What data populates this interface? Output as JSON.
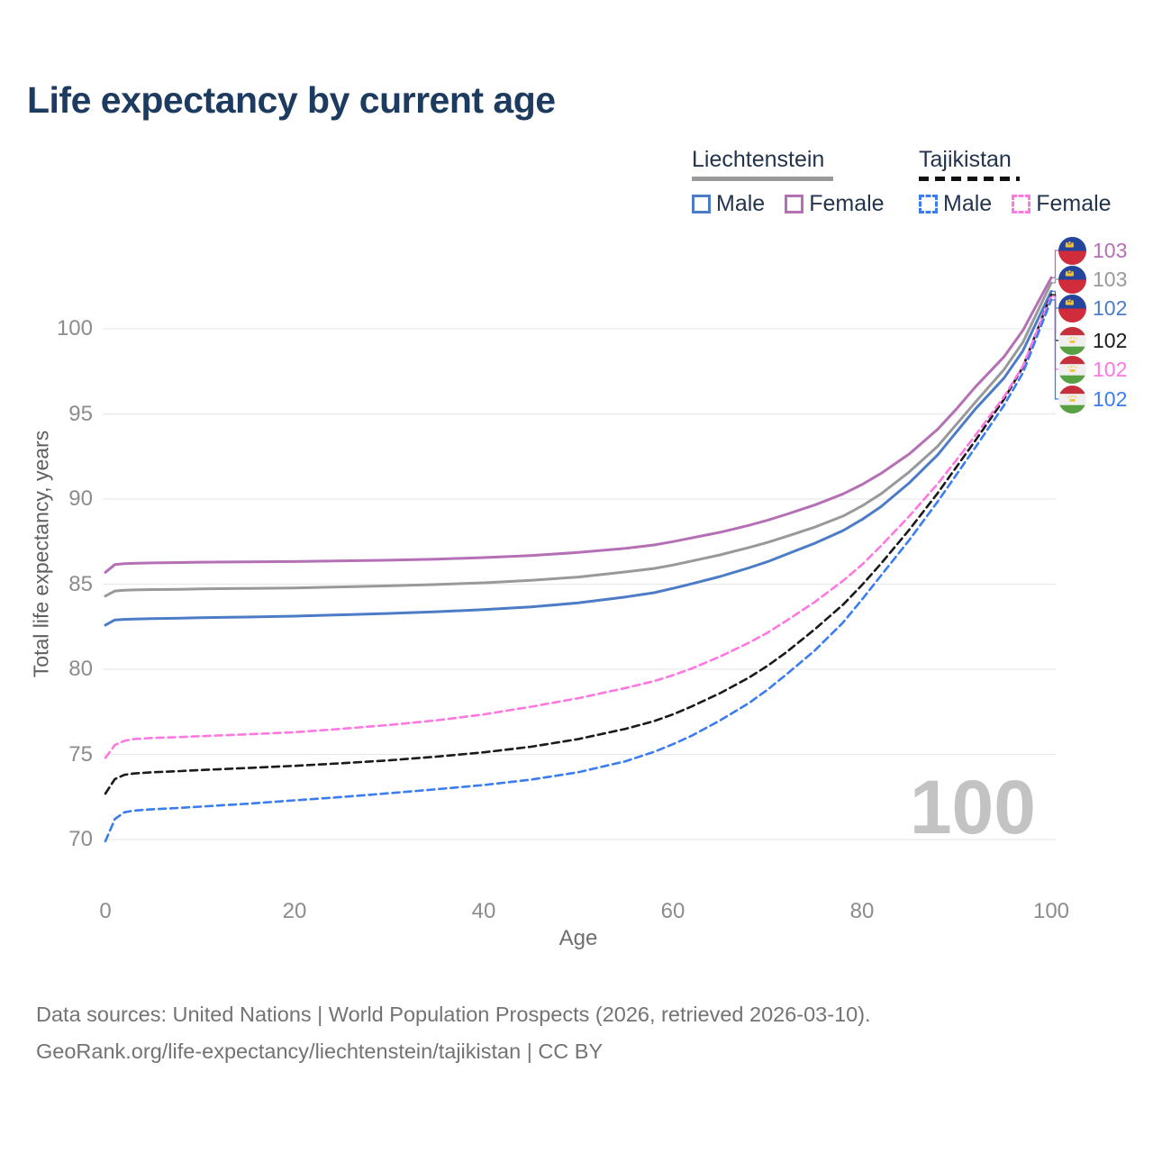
{
  "title": "Life expectancy by current age",
  "legend": {
    "groups": [
      {
        "id": "liechtenstein",
        "label": "Liechtenstein",
        "line_style": "solid",
        "line_color": "#9a9a9a",
        "items": [
          {
            "id": "male",
            "label": "Male",
            "color": "#4d7cc7",
            "dashed": false
          },
          {
            "id": "female",
            "label": "Female",
            "color": "#b570b5",
            "dashed": false
          }
        ]
      },
      {
        "id": "tajikistan",
        "label": "Tajikistan",
        "line_style": "dashed",
        "line_color": "#111111",
        "items": [
          {
            "id": "male",
            "label": "Male",
            "color": "#3b7df0",
            "dashed": true
          },
          {
            "id": "female",
            "label": "Female",
            "color": "#ff77e0",
            "dashed": true
          }
        ]
      }
    ]
  },
  "chart_data": {
    "type": "line",
    "title": "Life expectancy by current age",
    "xlabel": "Age",
    "ylabel": "Total life expectancy, years",
    "x_ticks": [
      0,
      20,
      40,
      60,
      80,
      100
    ],
    "y_ticks": [
      70,
      75,
      80,
      85,
      90,
      95,
      100
    ],
    "xlim": [
      0,
      100
    ],
    "ylim": [
      68.5,
      104.5
    ],
    "grid": "horizontal",
    "grid_color": "#e9e9e9",
    "hover_age_watermark": "100",
    "series": [
      {
        "id": "liechtenstein-female",
        "country": "Liechtenstein",
        "sex": "Female",
        "color": "#b570b5",
        "dashed": false,
        "flag": "liechtenstein",
        "end_label": "103",
        "points": [
          [
            0,
            85.7
          ],
          [
            1,
            86.15
          ],
          [
            2,
            86.2
          ],
          [
            3,
            86.22
          ],
          [
            5,
            86.25
          ],
          [
            8,
            86.27
          ],
          [
            10,
            86.29
          ],
          [
            15,
            86.31
          ],
          [
            20,
            86.33
          ],
          [
            25,
            86.37
          ],
          [
            30,
            86.41
          ],
          [
            35,
            86.47
          ],
          [
            40,
            86.56
          ],
          [
            45,
            86.68
          ],
          [
            50,
            86.86
          ],
          [
            55,
            87.1
          ],
          [
            58,
            87.3
          ],
          [
            60,
            87.5
          ],
          [
            62,
            87.72
          ],
          [
            65,
            88.05
          ],
          [
            68,
            88.45
          ],
          [
            70,
            88.75
          ],
          [
            72,
            89.1
          ],
          [
            75,
            89.65
          ],
          [
            78,
            90.3
          ],
          [
            80,
            90.85
          ],
          [
            82,
            91.5
          ],
          [
            85,
            92.65
          ],
          [
            88,
            94.1
          ],
          [
            90,
            95.3
          ],
          [
            92,
            96.6
          ],
          [
            95,
            98.35
          ],
          [
            97,
            99.9
          ],
          [
            100,
            103.0
          ]
        ]
      },
      {
        "id": "liechtenstein-all",
        "country": "Liechtenstein",
        "sex": "All",
        "color": "#999999",
        "dashed": false,
        "flag": "liechtenstein",
        "end_label": "103",
        "points": [
          [
            0,
            84.3
          ],
          [
            1,
            84.6
          ],
          [
            2,
            84.64
          ],
          [
            3,
            84.66
          ],
          [
            5,
            84.68
          ],
          [
            8,
            84.7
          ],
          [
            10,
            84.72
          ],
          [
            15,
            84.75
          ],
          [
            20,
            84.78
          ],
          [
            25,
            84.84
          ],
          [
            30,
            84.9
          ],
          [
            35,
            84.98
          ],
          [
            40,
            85.08
          ],
          [
            45,
            85.22
          ],
          [
            50,
            85.42
          ],
          [
            55,
            85.72
          ],
          [
            58,
            85.92
          ],
          [
            60,
            86.12
          ],
          [
            62,
            86.36
          ],
          [
            65,
            86.72
          ],
          [
            68,
            87.15
          ],
          [
            70,
            87.45
          ],
          [
            72,
            87.8
          ],
          [
            75,
            88.35
          ],
          [
            78,
            89.0
          ],
          [
            80,
            89.6
          ],
          [
            82,
            90.3
          ],
          [
            85,
            91.6
          ],
          [
            88,
            93.1
          ],
          [
            90,
            94.4
          ],
          [
            92,
            95.7
          ],
          [
            95,
            97.6
          ],
          [
            97,
            99.2
          ],
          [
            100,
            102.7
          ]
        ]
      },
      {
        "id": "liechtenstein-male",
        "country": "Liechtenstein",
        "sex": "Male",
        "color": "#4d7cc7",
        "dashed": false,
        "flag": "liechtenstein",
        "end_label": "102",
        "points": [
          [
            0,
            82.6
          ],
          [
            1,
            82.9
          ],
          [
            2,
            82.93
          ],
          [
            3,
            82.95
          ],
          [
            5,
            82.98
          ],
          [
            8,
            83.0
          ],
          [
            10,
            83.03
          ],
          [
            15,
            83.07
          ],
          [
            20,
            83.12
          ],
          [
            25,
            83.2
          ],
          [
            30,
            83.28
          ],
          [
            35,
            83.38
          ],
          [
            40,
            83.5
          ],
          [
            45,
            83.66
          ],
          [
            50,
            83.9
          ],
          [
            55,
            84.25
          ],
          [
            58,
            84.5
          ],
          [
            60,
            84.75
          ],
          [
            62,
            85.02
          ],
          [
            65,
            85.45
          ],
          [
            68,
            85.95
          ],
          [
            70,
            86.32
          ],
          [
            72,
            86.75
          ],
          [
            75,
            87.4
          ],
          [
            78,
            88.15
          ],
          [
            80,
            88.8
          ],
          [
            82,
            89.55
          ],
          [
            85,
            90.95
          ],
          [
            88,
            92.6
          ],
          [
            90,
            93.95
          ],
          [
            92,
            95.3
          ],
          [
            95,
            97.1
          ],
          [
            97,
            98.7
          ],
          [
            100,
            102.2
          ]
        ]
      },
      {
        "id": "tajikistan-all",
        "country": "Tajikistan",
        "sex": "All",
        "color": "#1a1a1a",
        "dashed": true,
        "flag": "tajikistan",
        "end_label": "102",
        "points": [
          [
            0,
            72.7
          ],
          [
            1,
            73.55
          ],
          [
            2,
            73.8
          ],
          [
            3,
            73.88
          ],
          [
            5,
            73.95
          ],
          [
            8,
            74.02
          ],
          [
            10,
            74.08
          ],
          [
            15,
            74.2
          ],
          [
            20,
            74.33
          ],
          [
            25,
            74.48
          ],
          [
            30,
            74.65
          ],
          [
            35,
            74.87
          ],
          [
            40,
            75.12
          ],
          [
            45,
            75.45
          ],
          [
            50,
            75.9
          ],
          [
            55,
            76.5
          ],
          [
            58,
            76.95
          ],
          [
            60,
            77.35
          ],
          [
            62,
            77.82
          ],
          [
            65,
            78.6
          ],
          [
            68,
            79.5
          ],
          [
            70,
            80.2
          ],
          [
            72,
            81.0
          ],
          [
            75,
            82.35
          ],
          [
            78,
            83.8
          ],
          [
            80,
            84.95
          ],
          [
            82,
            86.2
          ],
          [
            85,
            88.2
          ],
          [
            88,
            90.35
          ],
          [
            90,
            91.9
          ],
          [
            92,
            93.45
          ],
          [
            95,
            95.85
          ],
          [
            97,
            97.75
          ],
          [
            100,
            102.0
          ]
        ]
      },
      {
        "id": "tajikistan-female",
        "country": "Tajikistan",
        "sex": "Female",
        "color": "#ff77e0",
        "dashed": true,
        "flag": "tajikistan",
        "end_label": "102",
        "points": [
          [
            0,
            74.8
          ],
          [
            1,
            75.55
          ],
          [
            2,
            75.8
          ],
          [
            3,
            75.9
          ],
          [
            5,
            75.97
          ],
          [
            8,
            76.02
          ],
          [
            10,
            76.07
          ],
          [
            15,
            76.18
          ],
          [
            20,
            76.3
          ],
          [
            25,
            76.5
          ],
          [
            30,
            76.73
          ],
          [
            35,
            77.0
          ],
          [
            40,
            77.35
          ],
          [
            45,
            77.8
          ],
          [
            50,
            78.3
          ],
          [
            55,
            78.9
          ],
          [
            58,
            79.3
          ],
          [
            60,
            79.65
          ],
          [
            62,
            80.05
          ],
          [
            65,
            80.75
          ],
          [
            68,
            81.55
          ],
          [
            70,
            82.15
          ],
          [
            72,
            82.85
          ],
          [
            75,
            83.95
          ],
          [
            78,
            85.2
          ],
          [
            80,
            86.15
          ],
          [
            82,
            87.25
          ],
          [
            85,
            89.0
          ],
          [
            88,
            90.9
          ],
          [
            90,
            92.3
          ],
          [
            92,
            93.75
          ],
          [
            95,
            96.0
          ],
          [
            97,
            97.8
          ],
          [
            100,
            101.9
          ]
        ]
      },
      {
        "id": "tajikistan-male",
        "country": "Tajikistan",
        "sex": "Male",
        "color": "#3b7df0",
        "dashed": true,
        "flag": "tajikistan",
        "end_label": "102",
        "points": [
          [
            0,
            69.9
          ],
          [
            1,
            71.2
          ],
          [
            2,
            71.6
          ],
          [
            3,
            71.7
          ],
          [
            5,
            71.78
          ],
          [
            8,
            71.86
          ],
          [
            10,
            71.93
          ],
          [
            15,
            72.1
          ],
          [
            20,
            72.3
          ],
          [
            25,
            72.5
          ],
          [
            30,
            72.72
          ],
          [
            35,
            72.95
          ],
          [
            40,
            73.2
          ],
          [
            45,
            73.52
          ],
          [
            50,
            73.95
          ],
          [
            55,
            74.6
          ],
          [
            58,
            75.15
          ],
          [
            60,
            75.6
          ],
          [
            62,
            76.1
          ],
          [
            65,
            77.0
          ],
          [
            68,
            78.0
          ],
          [
            70,
            78.8
          ],
          [
            72,
            79.7
          ],
          [
            75,
            81.1
          ],
          [
            78,
            82.75
          ],
          [
            80,
            84.1
          ],
          [
            82,
            85.5
          ],
          [
            85,
            87.6
          ],
          [
            88,
            89.85
          ],
          [
            90,
            91.45
          ],
          [
            92,
            93.05
          ],
          [
            95,
            95.5
          ],
          [
            97,
            97.4
          ],
          [
            100,
            101.7
          ]
        ]
      }
    ]
  },
  "footer": {
    "line1": "Data sources: United Nations | World Population Prospects (2026, retrieved 2026-03-10).",
    "line2": "GeoRank.org/life-expectancy/liechtenstein/tajikistan | CC BY"
  }
}
